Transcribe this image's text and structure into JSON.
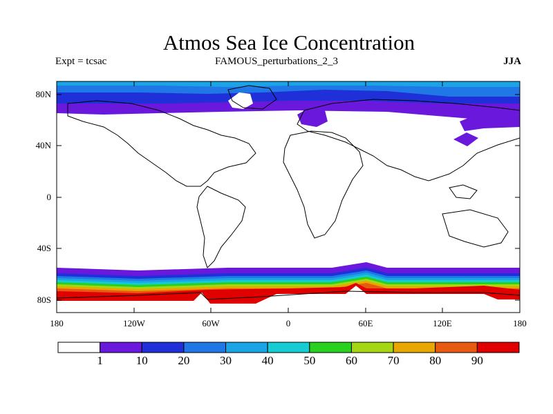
{
  "figure": {
    "title": "Atmos Sea Ice Concentration",
    "left_label": "Expt = tcsac",
    "center_label": "FAMOUS_perturbations_2_3",
    "right_label": "JJA"
  },
  "map": {
    "lon_ticks": [
      "180",
      "120W",
      "60W",
      "0",
      "60E",
      "120E",
      "180"
    ],
    "lat_ticks": [
      "80N",
      "40N",
      "0",
      "40S",
      "80S"
    ]
  },
  "colorbar": {
    "labels": [
      "1",
      "10",
      "20",
      "30",
      "40",
      "50",
      "60",
      "70",
      "80",
      "90"
    ],
    "colors": [
      "#ffffff",
      "#6a18dc",
      "#1f30d8",
      "#1f78e6",
      "#1aa4e6",
      "#16ccd2",
      "#28d020",
      "#a4d614",
      "#e8a600",
      "#e85a10",
      "#e00000"
    ]
  }
}
